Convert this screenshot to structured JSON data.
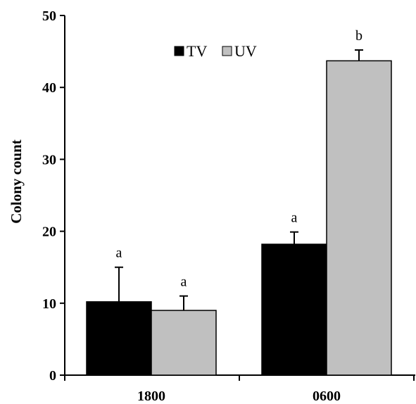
{
  "chart_data": {
    "type": "bar",
    "categories": [
      "1800",
      "0600"
    ],
    "series": [
      {
        "name": "TV",
        "color": "#000000",
        "values": [
          10.2,
          18.2
        ],
        "errors": [
          4.8,
          1.7
        ],
        "labels": [
          "a",
          "a"
        ]
      },
      {
        "name": "UV",
        "color": "#c0c0c0",
        "values": [
          9.0,
          43.7
        ],
        "errors": [
          2.0,
          1.5
        ],
        "labels": [
          "a",
          "b"
        ]
      }
    ],
    "ylabel": "Colony count",
    "xlabel": "",
    "ylim": [
      0,
      50
    ],
    "yticks": [
      0,
      10,
      20,
      30,
      40,
      50
    ],
    "legend_position": "top-center",
    "grid": false
  }
}
